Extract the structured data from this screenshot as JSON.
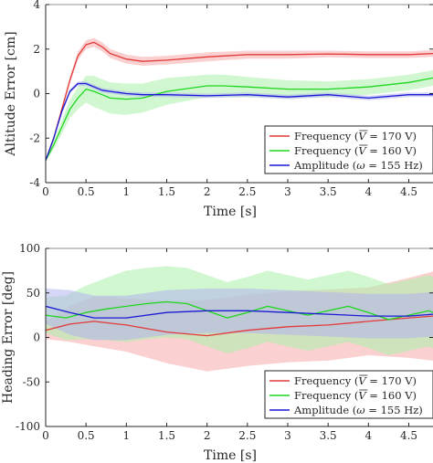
{
  "chart_data": [
    {
      "type": "line",
      "xlabel": "Time [s]",
      "ylabel": "Altitude Error [cm]",
      "xlim": [
        0,
        4.8
      ],
      "ylim": [
        -4,
        4
      ],
      "xticks": [
        "0",
        "0.5",
        "1",
        "1.5",
        "2",
        "2.5",
        "3",
        "3.5",
        "4",
        "4.5"
      ],
      "yticks": [
        "-4",
        "-2",
        "0",
        "2",
        "4"
      ],
      "grid": false,
      "legend_placement": "bottom-right",
      "series": [
        {
          "name": "Frequency ($\\bar{V}$ = 170 V)",
          "legend": [
            "Frequency (",
            "V",
            " = 170 V)"
          ],
          "color": "#e23a3a",
          "band": "#f6a9a9",
          "x": [
            0,
            0.1,
            0.2,
            0.3,
            0.4,
            0.5,
            0.6,
            0.7,
            0.8,
            1.0,
            1.2,
            1.5,
            2.0,
            2.5,
            3.0,
            3.5,
            4.0,
            4.5,
            4.8
          ],
          "y": [
            -3.0,
            -2.0,
            -0.7,
            0.6,
            1.7,
            2.2,
            2.3,
            2.1,
            1.8,
            1.55,
            1.45,
            1.5,
            1.65,
            1.75,
            1.75,
            1.78,
            1.75,
            1.75,
            1.8
          ],
          "spread": [
            0.05,
            0.1,
            0.12,
            0.15,
            0.18,
            0.2,
            0.2,
            0.2,
            0.2,
            0.2,
            0.2,
            0.2,
            0.2,
            0.18,
            0.18,
            0.15,
            0.15,
            0.15,
            0.15
          ]
        },
        {
          "name": "Frequency ($\\bar{V}$ = 160 V)",
          "legend": [
            "Frequency (",
            "V",
            " = 160 V)"
          ],
          "color": "#1fd61f",
          "band": "#aaf0aa",
          "x": [
            0,
            0.1,
            0.2,
            0.3,
            0.4,
            0.5,
            0.6,
            0.7,
            0.8,
            1.0,
            1.2,
            1.5,
            2.0,
            2.2,
            2.5,
            3.0,
            3.5,
            4.0,
            4.5,
            4.8
          ],
          "y": [
            -3.0,
            -2.3,
            -1.5,
            -0.7,
            -0.2,
            0.2,
            0.1,
            -0.05,
            -0.2,
            -0.25,
            -0.2,
            0.1,
            0.35,
            0.35,
            0.3,
            0.2,
            0.2,
            0.3,
            0.5,
            0.7
          ],
          "spread": [
            0.05,
            0.2,
            0.3,
            0.4,
            0.5,
            0.6,
            0.7,
            0.7,
            0.7,
            0.7,
            0.65,
            0.6,
            0.5,
            0.5,
            0.45,
            0.4,
            0.35,
            0.35,
            0.35,
            0.35
          ]
        },
        {
          "name": "Amplitude ($\\omega$ = 155 Hz)",
          "legend": [
            "Amplitude (",
            "ω",
            " = 155 Hz)"
          ],
          "color": "#1a1ad6",
          "band": "#b2b2ec",
          "x": [
            0,
            0.1,
            0.2,
            0.3,
            0.4,
            0.5,
            0.6,
            0.7,
            0.8,
            1.0,
            1.2,
            1.5,
            2.0,
            2.5,
            3.0,
            3.5,
            4.0,
            4.5,
            4.8
          ],
          "y": [
            -3.0,
            -2.0,
            -0.8,
            0.1,
            0.45,
            0.45,
            0.3,
            0.15,
            0.1,
            0.0,
            -0.05,
            -0.05,
            -0.1,
            -0.05,
            -0.15,
            -0.05,
            -0.2,
            -0.05,
            -0.05
          ],
          "spread": [
            0.05,
            0.1,
            0.1,
            0.1,
            0.1,
            0.1,
            0.1,
            0.1,
            0.1,
            0.1,
            0.1,
            0.1,
            0.1,
            0.1,
            0.1,
            0.1,
            0.1,
            0.1,
            0.1
          ]
        }
      ]
    },
    {
      "type": "line",
      "xlabel": "Time [s]",
      "ylabel": "Heading Error [deg]",
      "xlim": [
        0,
        4.8
      ],
      "ylim": [
        -100,
        100
      ],
      "xticks": [
        "0",
        "0.5",
        "1",
        "1.5",
        "2",
        "2.5",
        "3",
        "3.5",
        "4",
        "4.5"
      ],
      "yticks": [
        "-100",
        "-50",
        "0",
        "50",
        "100"
      ],
      "grid": false,
      "legend_placement": "bottom-right",
      "series": [
        {
          "name": "Frequency ($\\bar{V}$ = 170 V)",
          "legend": [
            "Frequency (",
            "V",
            " = 170 V)"
          ],
          "color": "#e23a3a",
          "band": "#f6a9a9",
          "x": [
            0,
            0.3,
            0.6,
            1.0,
            1.5,
            2.0,
            2.5,
            3.0,
            3.5,
            4.0,
            4.5,
            4.8
          ],
          "y": [
            8,
            15,
            18,
            14,
            6,
            2,
            8,
            12,
            14,
            18,
            22,
            24
          ],
          "spread": [
            10,
            20,
            28,
            30,
            35,
            40,
            40,
            40,
            40,
            38,
            45,
            50
          ]
        },
        {
          "name": "Frequency ($\\bar{V}$ = 160 V)",
          "legend": [
            "Frequency (",
            "V",
            " = 160 V)"
          ],
          "color": "#1fd61f",
          "band": "#aaf0aa",
          "x": [
            0,
            0.25,
            0.5,
            0.75,
            1.0,
            1.25,
            1.5,
            1.75,
            2.0,
            2.25,
            2.5,
            2.75,
            3.0,
            3.25,
            3.5,
            3.75,
            4.0,
            4.25,
            4.5,
            4.75,
            4.8
          ],
          "y": [
            25,
            22,
            28,
            32,
            35,
            38,
            40,
            38,
            30,
            22,
            28,
            35,
            30,
            25,
            30,
            35,
            28,
            20,
            25,
            30,
            28
          ],
          "spread": [
            20,
            25,
            30,
            35,
            40,
            40,
            40,
            40,
            40,
            40,
            40,
            40,
            40,
            40,
            40,
            40,
            40,
            40,
            40,
            40,
            40
          ]
        },
        {
          "name": "Amplitude ($\\omega$ = 155 Hz)",
          "legend": [
            "Amplitude (",
            "ω",
            " = 155 Hz)"
          ],
          "color": "#1a1ad6",
          "band": "#b2b2ec",
          "x": [
            0,
            0.3,
            0.6,
            1.0,
            1.5,
            2.0,
            2.5,
            3.0,
            3.5,
            4.0,
            4.5,
            4.8
          ],
          "y": [
            35,
            28,
            22,
            22,
            28,
            30,
            30,
            28,
            26,
            24,
            24,
            26
          ],
          "spread": [
            20,
            25,
            25,
            25,
            25,
            25,
            25,
            25,
            25,
            25,
            25,
            25
          ]
        }
      ]
    }
  ]
}
